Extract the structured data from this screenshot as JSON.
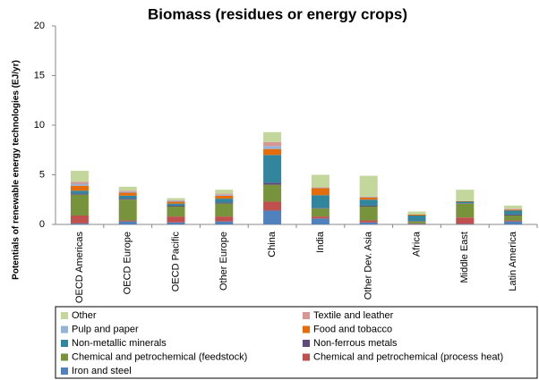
{
  "chart_data": {
    "type": "stacked_bar",
    "title": "Biomass (residues or energy crops)",
    "y_label": "Potentials of renewable energy technologies (EJ/yr)",
    "categories": [
      "OECD Americas",
      "OECD Europe",
      "OECD Pacific",
      "Other Europe",
      "China",
      "India",
      "Other Dev. Asia",
      "Africa",
      "Middle East",
      "Latin America"
    ],
    "ylim": [
      0,
      20
    ],
    "yticks": [
      0,
      5,
      10,
      15,
      20
    ],
    "series": [
      {
        "name": "Iron and steel",
        "color": "#4f81bd",
        "values": [
          0.1,
          0.3,
          0.2,
          0.3,
          1.4,
          0.6,
          0.2,
          0.05,
          0.05,
          0.3
        ]
      },
      {
        "name": "Chemical and petrochemical (process heat)",
        "color": "#c0504d",
        "values": [
          0.8,
          0.1,
          0.6,
          0.5,
          0.9,
          0.2,
          0.2,
          0.05,
          0.65,
          0.1
        ]
      },
      {
        "name": "Chemical and petrochemical (feedstock)",
        "color": "#77933c",
        "values": [
          2.1,
          2.1,
          1.0,
          1.3,
          1.7,
          0.8,
          1.4,
          0.2,
          1.4,
          0.5
        ]
      },
      {
        "name": "Non-ferrous metals",
        "color": "#604a7b",
        "values": [
          0.1,
          0.1,
          0.1,
          0.1,
          0.2,
          0.05,
          0.1,
          0.05,
          0.05,
          0.1
        ]
      },
      {
        "name": "Non-metallic minerals",
        "color": "#31859c",
        "values": [
          0.3,
          0.3,
          0.2,
          0.4,
          2.8,
          1.3,
          0.6,
          0.55,
          0.15,
          0.4
        ]
      },
      {
        "name": "Food and tobacco",
        "color": "#e46c0a",
        "values": [
          0.5,
          0.3,
          0.2,
          0.3,
          0.6,
          0.7,
          0.2,
          0.1,
          0.05,
          0.1
        ]
      },
      {
        "name": "Pulp and paper",
        "color": "#95b3d7",
        "values": [
          0.2,
          0.1,
          0.1,
          0.1,
          0.3,
          0.05,
          0.05,
          0,
          0,
          0.05
        ]
      },
      {
        "name": "Textile and leather",
        "color": "#d99694",
        "values": [
          0.2,
          0.1,
          0.05,
          0.1,
          0.4,
          0.05,
          0.05,
          0,
          0,
          0.05
        ]
      },
      {
        "name": "Other",
        "color": "#c3d69b",
        "values": [
          1.1,
          0.4,
          0.2,
          0.4,
          1.0,
          1.25,
          2.1,
          0.3,
          1.15,
          0.3
        ]
      }
    ]
  }
}
